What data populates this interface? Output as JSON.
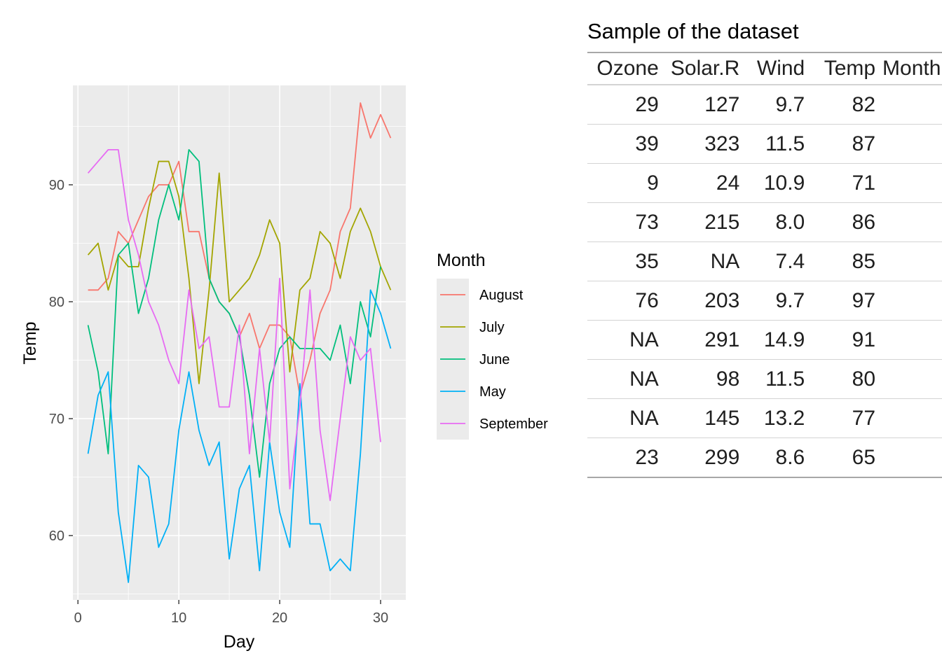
{
  "chart_data": {
    "type": "line",
    "xlabel": "Day",
    "ylabel": "Temp",
    "xlim": [
      -0.5,
      32.5
    ],
    "ylim": [
      54.5,
      98.5
    ],
    "x_ticks": [
      0,
      10,
      20,
      30
    ],
    "y_ticks": [
      60,
      70,
      80,
      90
    ],
    "grid": true,
    "legend_title": "Month",
    "legend_position": "right",
    "series": [
      {
        "name": "August",
        "color": "#F8766D",
        "x": [
          1,
          2,
          3,
          4,
          5,
          6,
          7,
          8,
          9,
          10,
          11,
          12,
          13,
          14,
          15,
          16,
          17,
          18,
          19,
          20,
          21,
          22,
          23,
          24,
          25,
          26,
          27,
          28,
          29,
          30,
          31
        ],
        "values": [
          81,
          81,
          82,
          86,
          85,
          87,
          89,
          90,
          90,
          92,
          86,
          86,
          82,
          80,
          79,
          77,
          79,
          76,
          78,
          78,
          77,
          72,
          75,
          79,
          81,
          86,
          88,
          97,
          94,
          96,
          94
        ]
      },
      {
        "name": "July",
        "color": "#A3A500",
        "x": [
          1,
          2,
          3,
          4,
          5,
          6,
          7,
          8,
          9,
          10,
          11,
          12,
          13,
          14,
          15,
          16,
          17,
          18,
          19,
          20,
          21,
          22,
          23,
          24,
          25,
          26,
          27,
          28,
          29,
          30,
          31
        ],
        "values": [
          84,
          85,
          81,
          84,
          83,
          83,
          88,
          92,
          92,
          89,
          82,
          73,
          81,
          91,
          80,
          81,
          82,
          84,
          87,
          85,
          74,
          81,
          82,
          86,
          85,
          82,
          86,
          88,
          86,
          83,
          81
        ]
      },
      {
        "name": "June",
        "color": "#00BF7D",
        "x": [
          1,
          2,
          3,
          4,
          5,
          6,
          7,
          8,
          9,
          10,
          11,
          12,
          13,
          14,
          15,
          16,
          17,
          18,
          19,
          20,
          21,
          22,
          23,
          24,
          25,
          26,
          27,
          28,
          29,
          30
        ],
        "values": [
          78,
          74,
          67,
          84,
          85,
          79,
          82,
          87,
          90,
          87,
          93,
          92,
          82,
          80,
          79,
          77,
          72,
          65,
          73,
          76,
          77,
          76,
          76,
          76,
          75,
          78,
          73,
          80,
          77,
          83
        ]
      },
      {
        "name": "May",
        "color": "#00B0F6",
        "x": [
          1,
          2,
          3,
          4,
          5,
          6,
          7,
          8,
          9,
          10,
          11,
          12,
          13,
          14,
          15,
          16,
          17,
          18,
          19,
          20,
          21,
          22,
          23,
          24,
          25,
          26,
          27,
          28,
          29,
          30,
          31
        ],
        "values": [
          67,
          72,
          74,
          62,
          56,
          66,
          65,
          59,
          61,
          69,
          74,
          69,
          66,
          68,
          58,
          64,
          66,
          57,
          68,
          62,
          59,
          73,
          61,
          61,
          57,
          58,
          57,
          67,
          81,
          79,
          76
        ]
      },
      {
        "name": "September",
        "color": "#E76BF3",
        "x": [
          1,
          2,
          3,
          4,
          5,
          6,
          7,
          8,
          9,
          10,
          11,
          12,
          13,
          14,
          15,
          16,
          17,
          18,
          19,
          20,
          21,
          22,
          23,
          24,
          25,
          26,
          27,
          28,
          29,
          30
        ],
        "values": [
          91,
          92,
          93,
          93,
          87,
          84,
          80,
          78,
          75,
          73,
          81,
          76,
          77,
          71,
          71,
          78,
          67,
          76,
          68,
          82,
          64,
          71,
          81,
          69,
          63,
          70,
          77,
          75,
          76,
          68
        ]
      }
    ]
  },
  "table": {
    "title": "Sample of the dataset",
    "headers": {
      "ozone": "Ozone",
      "solar": "Solar.R",
      "wind": "Wind",
      "temp": "Temp",
      "month": "Month"
    },
    "rows": [
      {
        "ozone": "29",
        "solar": "127",
        "wind": "9.7",
        "temp": "82"
      },
      {
        "ozone": "39",
        "solar": "323",
        "wind": "11.5",
        "temp": "87"
      },
      {
        "ozone": "9",
        "solar": "24",
        "wind": "10.9",
        "temp": "71"
      },
      {
        "ozone": "73",
        "solar": "215",
        "wind": "8.0",
        "temp": "86"
      },
      {
        "ozone": "35",
        "solar": "NA",
        "wind": "7.4",
        "temp": "85"
      },
      {
        "ozone": "76",
        "solar": "203",
        "wind": "9.7",
        "temp": "97"
      },
      {
        "ozone": "NA",
        "solar": "291",
        "wind": "14.9",
        "temp": "91"
      },
      {
        "ozone": "NA",
        "solar": "98",
        "wind": "11.5",
        "temp": "80"
      },
      {
        "ozone": "NA",
        "solar": "145",
        "wind": "13.2",
        "temp": "77"
      },
      {
        "ozone": "23",
        "solar": "299",
        "wind": "8.6",
        "temp": "65"
      }
    ]
  }
}
